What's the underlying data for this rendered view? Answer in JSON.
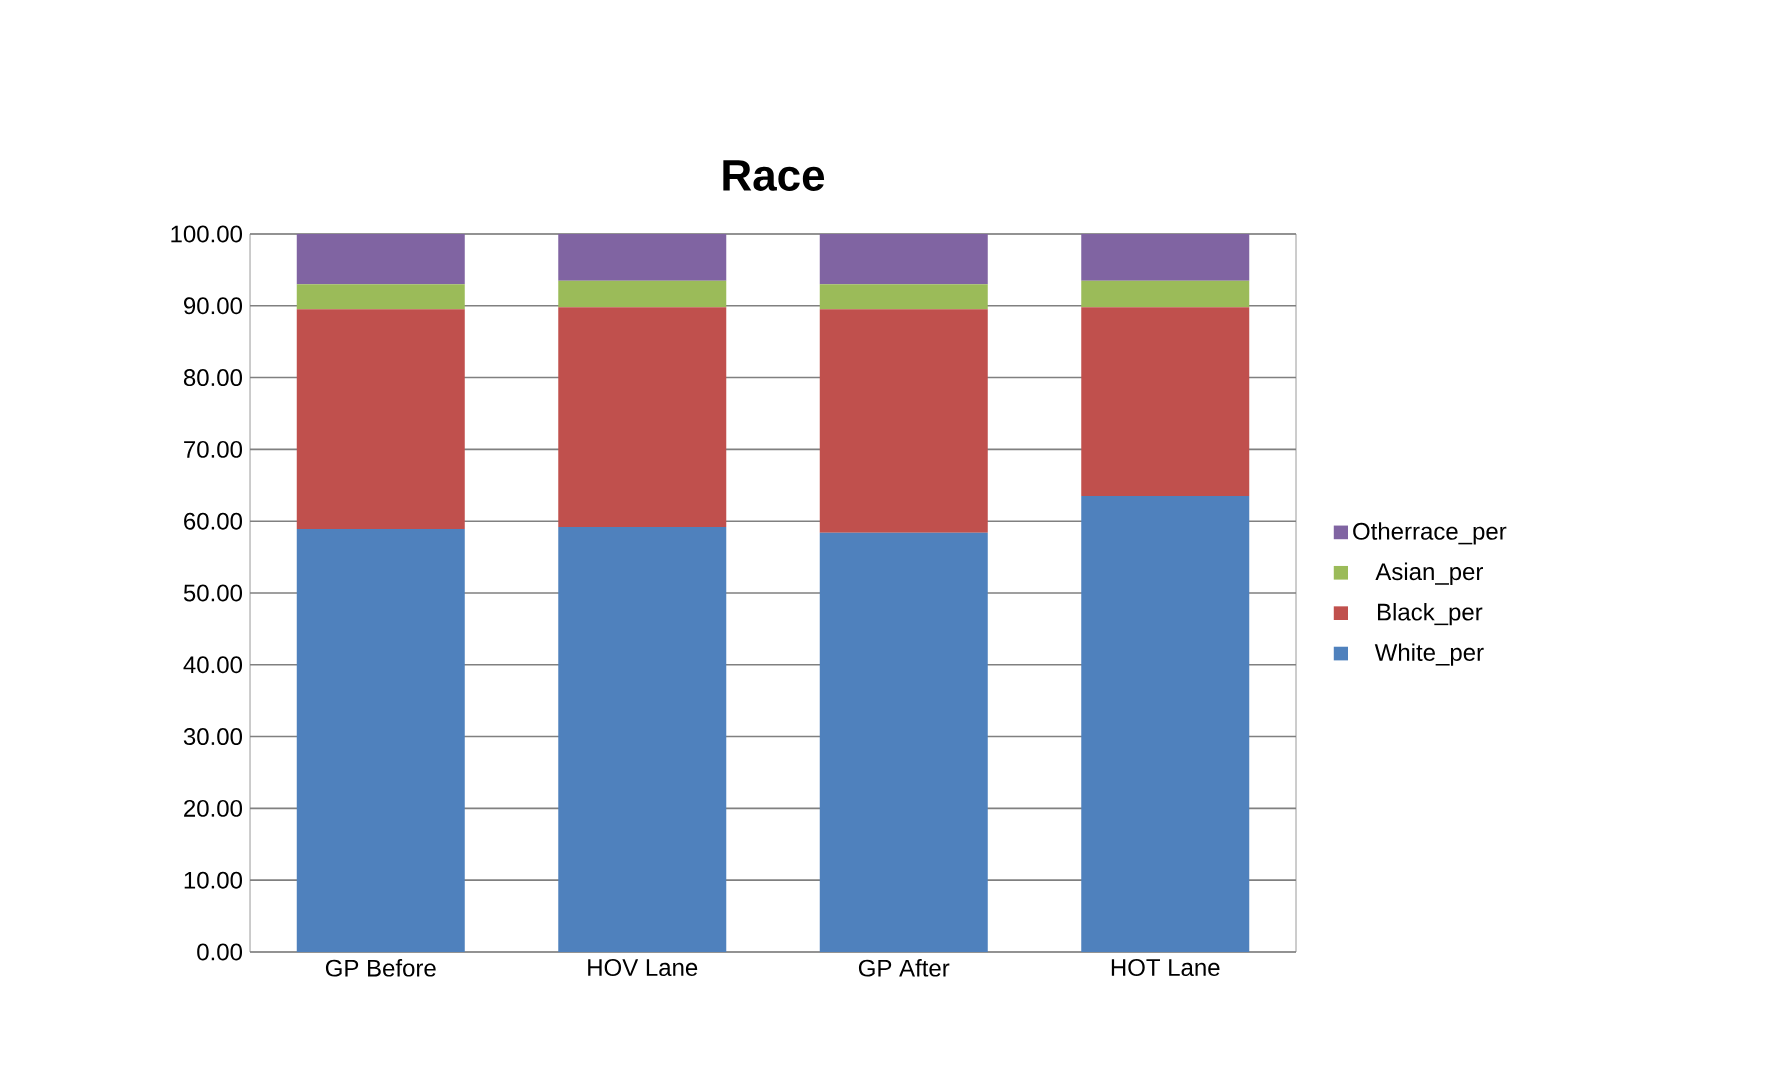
{
  "chart_data": {
    "type": "bar",
    "title": "Race",
    "stacked": true,
    "categories": [
      "GP Before",
      "HOV Lane",
      "GP After",
      "HOT Lane"
    ],
    "series": [
      {
        "name": "White_per",
        "color": "#4f81bd",
        "values": [
          58.9,
          59.2,
          58.4,
          63.5
        ]
      },
      {
        "name": "Black_per",
        "color": "#c0504d",
        "values": [
          30.6,
          30.6,
          31.1,
          26.3
        ]
      },
      {
        "name": "Asian_per",
        "color": "#9bbb59",
        "values": [
          3.5,
          3.7,
          3.5,
          3.7
        ]
      },
      {
        "name": "Otherrace_per",
        "color": "#8064a2",
        "values": [
          7.0,
          6.5,
          7.0,
          6.5
        ]
      }
    ],
    "ylim": [
      0,
      100
    ],
    "yticks": [
      {
        "value": 0,
        "label": "0.00"
      },
      {
        "value": 10,
        "label": "10.00"
      },
      {
        "value": 20,
        "label": "20.00"
      },
      {
        "value": 30,
        "label": "30.00"
      },
      {
        "value": 40,
        "label": "40.00"
      },
      {
        "value": 50,
        "label": "50.00"
      },
      {
        "value": 60,
        "label": "60.00"
      },
      {
        "value": 70,
        "label": "70.00"
      },
      {
        "value": 80,
        "label": "80.00"
      },
      {
        "value": 90,
        "label": "90.00"
      },
      {
        "value": 100,
        "label": "100.00"
      }
    ],
    "grid": "y",
    "legend": "right"
  }
}
